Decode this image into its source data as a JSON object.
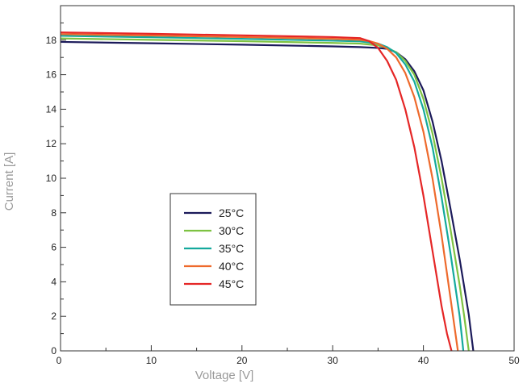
{
  "chart_data": {
    "type": "line",
    "title": "",
    "xlabel": "Voltage [V]",
    "ylabel": "Current [A]",
    "xlim": [
      0,
      50
    ],
    "ylim": [
      0,
      20
    ],
    "xticks": [
      0,
      10,
      20,
      30,
      40,
      50
    ],
    "yticks": [
      0,
      2,
      4,
      6,
      8,
      10,
      12,
      14,
      16,
      18
    ],
    "grid": false,
    "legend": "lower-left",
    "series": [
      {
        "name": "25°C",
        "color": "#1b1a5a",
        "x": [
          0,
          10,
          20,
          30,
          33,
          35,
          36,
          37,
          38,
          39,
          40,
          41,
          42,
          43,
          44,
          45,
          45.5
        ],
        "y": [
          17.9,
          17.82,
          17.74,
          17.64,
          17.6,
          17.55,
          17.5,
          17.3,
          16.9,
          16.2,
          15.1,
          13.3,
          11.0,
          8.2,
          5.3,
          2.1,
          0
        ]
      },
      {
        "name": "30°C",
        "color": "#7ec242",
        "x": [
          0,
          10,
          20,
          30,
          33,
          35,
          36,
          37,
          38,
          39,
          40,
          41,
          42,
          43,
          44,
          44.5,
          45.0
        ],
        "y": [
          18.1,
          18.02,
          17.94,
          17.84,
          17.8,
          17.7,
          17.55,
          17.3,
          16.8,
          16.0,
          14.6,
          12.6,
          10.0,
          7.0,
          3.8,
          2.0,
          0
        ]
      },
      {
        "name": "35°C",
        "color": "#14a99d",
        "x": [
          0,
          10,
          20,
          30,
          33,
          35,
          36,
          37,
          38,
          39,
          40,
          41,
          42,
          43,
          44,
          44.4
        ],
        "y": [
          18.25,
          18.17,
          18.08,
          17.97,
          17.93,
          17.8,
          17.6,
          17.25,
          16.6,
          15.6,
          14.0,
          11.8,
          8.9,
          5.6,
          2.0,
          0
        ]
      },
      {
        "name": "40°C",
        "color": "#ee6a2c",
        "x": [
          0,
          10,
          20,
          30,
          33,
          34,
          35,
          36,
          37,
          38,
          39,
          40,
          41,
          42,
          43,
          43.8
        ],
        "y": [
          18.35,
          18.27,
          18.18,
          18.08,
          18.02,
          17.95,
          17.8,
          17.5,
          17.0,
          16.1,
          14.7,
          12.7,
          10.0,
          6.7,
          3.0,
          0
        ]
      },
      {
        "name": "45°C",
        "color": "#e52626",
        "x": [
          0,
          10,
          20,
          30,
          33,
          34,
          35,
          36,
          37,
          38,
          39,
          40,
          41,
          42,
          42.6,
          43.1
        ],
        "y": [
          18.45,
          18.37,
          18.28,
          18.18,
          18.12,
          17.95,
          17.55,
          16.8,
          15.7,
          14.0,
          11.8,
          9.0,
          5.8,
          2.6,
          1.0,
          0
        ]
      }
    ]
  }
}
